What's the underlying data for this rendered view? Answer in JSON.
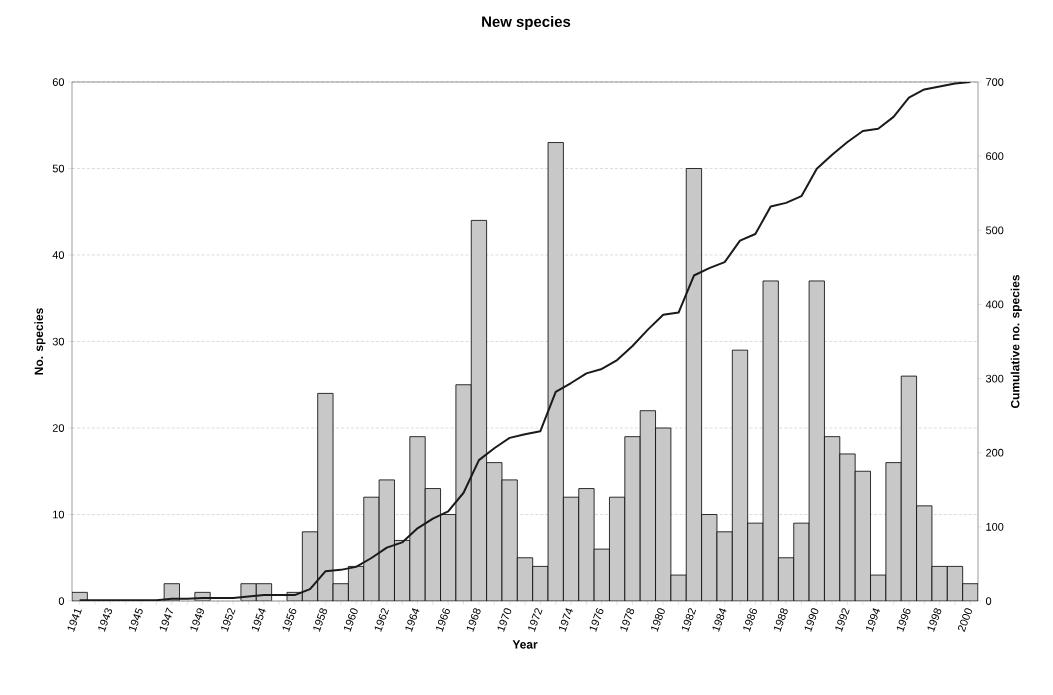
{
  "chart_data": {
    "type": "bar",
    "title": "New species",
    "xlabel": "Year",
    "ylabel": "No. species",
    "y2label": "Cumulative no. species",
    "categories": [
      "1941",
      null,
      "1943",
      null,
      "1945",
      null,
      "1947",
      null,
      "1949",
      null,
      "1952",
      null,
      "1954",
      null,
      "1956",
      null,
      "1958",
      null,
      "1960",
      null,
      "1962",
      null,
      "1964",
      null,
      "1966",
      null,
      "1968",
      null,
      "1970",
      null,
      "1972",
      null,
      "1974",
      null,
      "1976",
      null,
      "1978",
      null,
      "1980",
      null,
      "1982",
      null,
      "1984",
      null,
      "1986",
      null,
      "1988",
      null,
      "1990",
      null,
      "1992",
      null,
      "1994",
      null,
      "1996",
      null,
      "1998",
      null,
      "2000"
    ],
    "series": [
      {
        "color": "#c8c8c8",
        "values": [
          1,
          0,
          0,
          0,
          0,
          0,
          2,
          0,
          1,
          0,
          0,
          2,
          2,
          0,
          1,
          8,
          24,
          2,
          4,
          12,
          14,
          7,
          19,
          13,
          10,
          25,
          44,
          16,
          14,
          5,
          4,
          53,
          12,
          13,
          6,
          12,
          19,
          22,
          20,
          3,
          50,
          10,
          8,
          29,
          9,
          37,
          5,
          9,
          37,
          19,
          17,
          15,
          3,
          16,
          26,
          11,
          4,
          4,
          2
        ]
      },
      {
        "type": "line",
        "axis": "y2",
        "color": "#1a1a1a",
        "values": [
          1,
          1,
          1,
          1,
          1,
          1,
          3,
          3,
          4,
          4,
          4,
          6,
          8,
          8,
          8,
          16,
          40,
          42,
          46,
          58,
          72,
          79,
          98,
          111,
          121,
          146,
          190,
          206,
          220,
          225,
          229,
          282,
          294,
          307,
          313,
          325,
          344,
          366,
          386,
          389,
          439,
          449,
          457,
          486,
          495,
          532,
          537,
          546,
          583,
          602,
          619,
          634,
          637,
          653,
          679,
          690,
          694,
          698,
          700
        ]
      }
    ],
    "ylim": [
      0,
      60
    ],
    "yticks": [
      0,
      10,
      20,
      30,
      40,
      50,
      60
    ],
    "y2lim": [
      0,
      700
    ],
    "y2ticks": [
      0,
      100,
      200,
      300,
      400,
      500,
      600,
      700
    ],
    "grid": "y"
  }
}
